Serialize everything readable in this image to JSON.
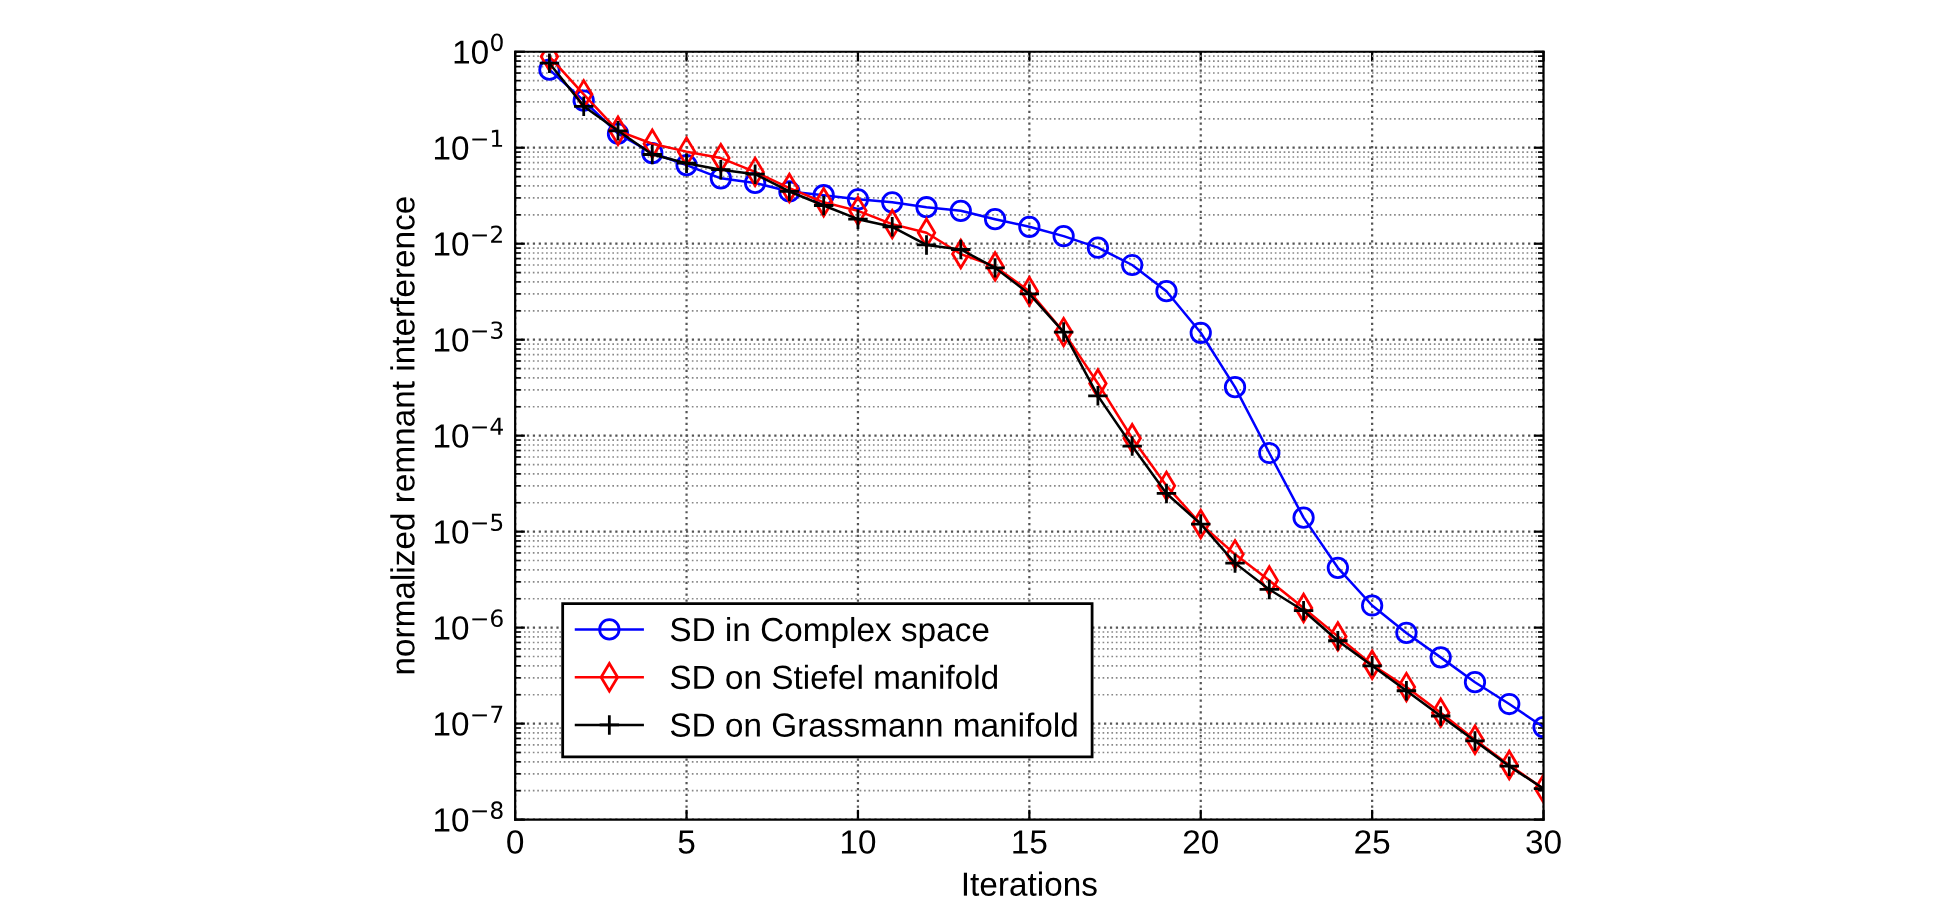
{
  "chart_data": {
    "type": "line",
    "xlabel": "Iterations",
    "ylabel": "normalized remnant interference",
    "x": [
      1,
      2,
      3,
      4,
      5,
      6,
      7,
      8,
      9,
      10,
      11,
      12,
      13,
      14,
      15,
      16,
      17,
      18,
      19,
      20,
      21,
      22,
      23,
      24,
      25,
      26,
      27,
      28,
      29,
      30
    ],
    "series": [
      {
        "name": "SD in Complex space",
        "color": "#0000ff",
        "marker": "circle",
        "values": [
          0.65,
          0.31,
          0.14,
          0.088,
          0.066,
          0.048,
          0.043,
          0.035,
          0.032,
          0.029,
          0.027,
          0.024,
          0.022,
          0.018,
          0.015,
          0.012,
          0.0091,
          0.006,
          0.0032,
          0.00118,
          0.00032,
          6.6e-05,
          1.4e-05,
          4.2e-06,
          1.7e-06,
          8.8e-07,
          4.9e-07,
          2.7e-07,
          1.6e-07,
          9.2e-08
        ]
      },
      {
        "name": "SD on Stiefel manifold",
        "color": "#ff0000",
        "marker": "diamond",
        "values": [
          0.89,
          0.36,
          0.15,
          0.11,
          0.091,
          0.078,
          0.056,
          0.038,
          0.027,
          0.022,
          0.016,
          0.013,
          0.0078,
          0.0058,
          0.0032,
          0.0012,
          0.00035,
          9.4e-05,
          3e-05,
          1.2e-05,
          5.8e-06,
          3.1e-06,
          1.6e-06,
          8.1e-07,
          4.1e-07,
          2.4e-07,
          1.3e-07,
          6.8e-08,
          3.7e-08,
          2.1e-08
        ]
      },
      {
        "name": "SD on Grassmann manifold",
        "color": "#000000",
        "marker": "cross",
        "values": [
          0.76,
          0.27,
          0.15,
          0.085,
          0.069,
          0.059,
          0.053,
          0.035,
          0.025,
          0.018,
          0.015,
          0.0097,
          0.0087,
          0.0056,
          0.003,
          0.0012,
          0.00026,
          7.8e-05,
          2.5e-05,
          1.2e-05,
          4.7e-06,
          2.5e-06,
          1.5e-06,
          7.3e-07,
          4e-07,
          2.2e-07,
          1.2e-07,
          6.6e-08,
          3.6e-08,
          2.1e-08
        ]
      }
    ],
    "xlim": [
      0,
      30
    ],
    "xticks": [
      0,
      5,
      10,
      15,
      20,
      25,
      30
    ],
    "ylim": [
      1e-08,
      1
    ],
    "yticks": [
      {
        "value": 1e-08,
        "label": "10$^{−8}$"
      },
      {
        "value": 1e-07,
        "label": "10$^{−7}$"
      },
      {
        "value": 1e-06,
        "label": "10$^{−6}$"
      },
      {
        "value": 1e-05,
        "label": "10$^{−5}$"
      },
      {
        "value": 0.0001,
        "label": "10$^{−4}$"
      },
      {
        "value": 0.001,
        "label": "10$^{−3}$"
      },
      {
        "value": 0.01,
        "label": "10$^{−2}$"
      },
      {
        "value": 0.1,
        "label": "10$^{−1}$"
      },
      {
        "value": 1,
        "label": "10$^{0}$"
      }
    ],
    "log": "y",
    "grid": true,
    "legend": "bottom left",
    "line_style": "solid"
  }
}
